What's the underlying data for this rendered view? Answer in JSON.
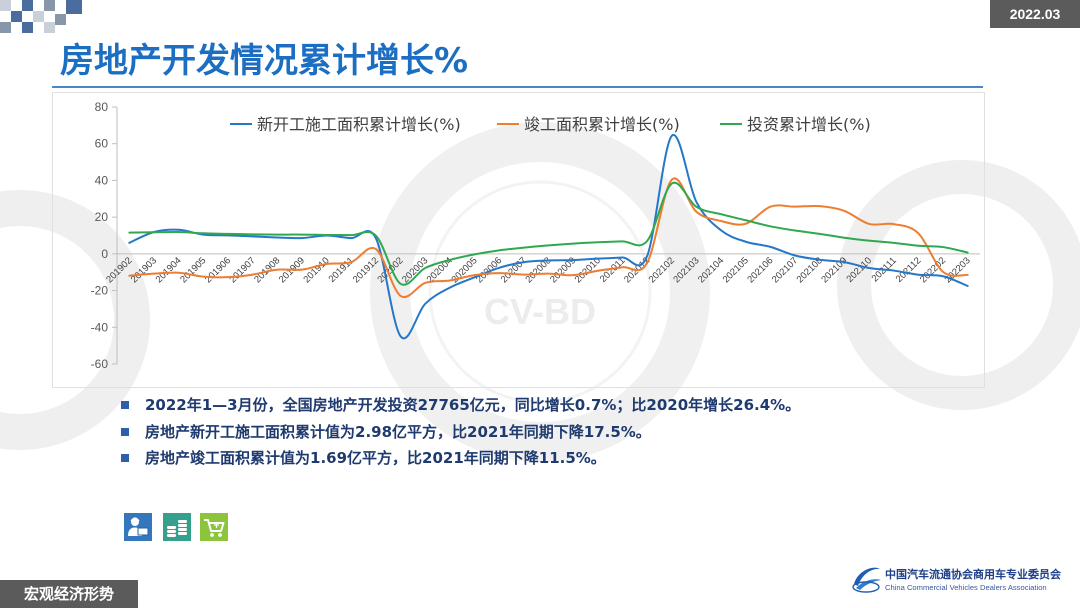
{
  "header": {
    "date_badge": "2022.03",
    "title": "房地产开发情况累计增长%"
  },
  "chart_data": {
    "type": "line",
    "categories": [
      "201902",
      "201903",
      "201904",
      "201905",
      "201906",
      "201907",
      "201908",
      "201909",
      "201910",
      "201911",
      "201912",
      "202002",
      "202003",
      "202004",
      "202005",
      "202006",
      "202007",
      "202008",
      "202009",
      "202010",
      "202011",
      "202012",
      "202102",
      "202103",
      "202104",
      "202105",
      "202106",
      "202107",
      "202108",
      "202109",
      "202110",
      "202111",
      "202112",
      "202202",
      "202203"
    ],
    "series": [
      {
        "name": "新开工施工面积累计增长(%)",
        "color": "#2477c9",
        "values": [
          6.0,
          11.9,
          13.1,
          10.5,
          10.1,
          9.5,
          8.9,
          8.6,
          10.0,
          8.6,
          8.5,
          -44.9,
          -27.2,
          -18.4,
          -12.8,
          -7.6,
          -4.5,
          -3.6,
          -3.4,
          -2.6,
          -2.0,
          -1.2,
          64.3,
          28.2,
          12.8,
          6.6,
          3.8,
          -0.9,
          -3.2,
          -4.5,
          -7.7,
          -9.1,
          -11.4,
          -12.2,
          -17.5
        ]
      },
      {
        "name": "竣工面积累计增长(%)",
        "color": "#ed7d31",
        "values": [
          -11.9,
          -10.8,
          -10.3,
          -12.4,
          -12.7,
          -11.3,
          -8.6,
          -8.6,
          -5.5,
          -4.5,
          2.6,
          -22.9,
          -15.8,
          -14.5,
          -11.6,
          -10.5,
          -11.3,
          -10.8,
          -11.6,
          -9.2,
          -7.3,
          -4.9,
          40.4,
          22.9,
          17.9,
          16.4,
          25.7,
          25.7,
          26.0,
          23.4,
          16.3,
          16.2,
          11.2,
          -9.8,
          -11.5
        ]
      },
      {
        "name": "投资累计增长(%)",
        "color": "#2fa84f",
        "values": [
          11.6,
          11.8,
          11.9,
          11.2,
          10.9,
          10.6,
          10.5,
          10.5,
          10.3,
          10.2,
          9.9,
          -16.3,
          -7.7,
          -3.3,
          -0.3,
          1.9,
          3.4,
          4.6,
          5.6,
          6.3,
          6.8,
          7.0,
          38.3,
          25.6,
          21.6,
          18.3,
          15.0,
          12.7,
          10.9,
          8.8,
          7.2,
          6.0,
          4.4,
          3.7,
          0.7
        ]
      }
    ],
    "ylim": [
      -60,
      80
    ],
    "yticks": [
      80,
      60,
      40,
      20,
      0,
      -20,
      -40,
      -60
    ],
    "grid": false,
    "legend_position": "top"
  },
  "bullets": [
    "2022年1—3月份，全国房地产开发投资27765亿元，同比增长0.7%；比2020年增长26.4%。",
    "房地产新开工施工面积累计值为2.98亿平方，比2021年同期下降17.5%。",
    "房地产竣工面积累计值为1.69亿平方，比2021年同期下降11.5%。"
  ],
  "icons": [
    {
      "name": "customer-service-icon",
      "color": "#3577bd"
    },
    {
      "name": "coins-icon",
      "color": "#35a08c"
    },
    {
      "name": "shopping-cart-icon",
      "color": "#8cc43c"
    }
  ],
  "footer": {
    "section_label": "宏观经济形势",
    "org_name_cn": "中国汽车流通协会商用车专业委员会",
    "org_name_en": "China Commercial Vehicles Dealers Association"
  },
  "watermark": {
    "text": "CV-BD"
  }
}
